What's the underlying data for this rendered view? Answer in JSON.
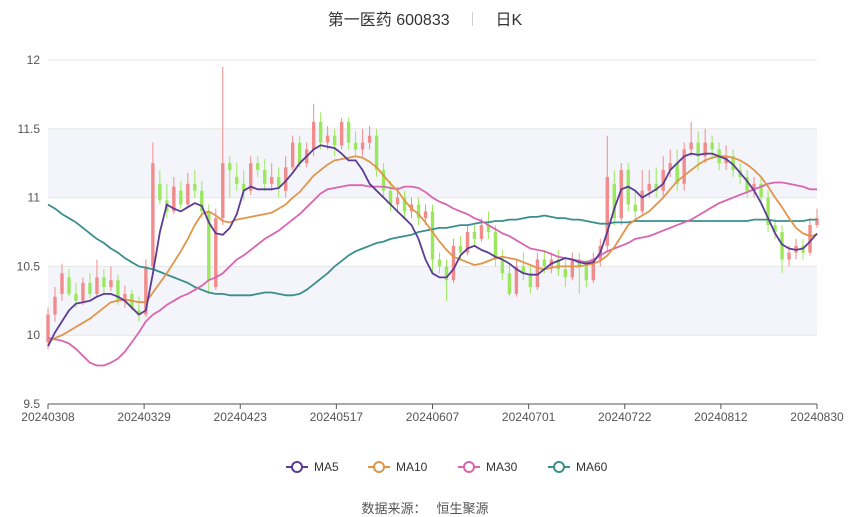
{
  "title": {
    "name": "第一医药",
    "code": "600833",
    "period": "日K"
  },
  "source": {
    "label": "数据来源：",
    "value": "恒生聚源"
  },
  "chart_data": {
    "type": "candlestick",
    "ylim": [
      9.5,
      12
    ],
    "yticks": [
      "9.5",
      "10",
      "10.5",
      "11",
      "11.5",
      "12"
    ],
    "xticks": [
      "20240308",
      "20240329",
      "20240423",
      "20240517",
      "20240607",
      "20240701",
      "20240722",
      "20240812",
      "20240830"
    ],
    "colors": {
      "up": "#f28b8c",
      "down": "#9be85f",
      "MA5": "#5b3c95",
      "MA10": "#e0954a",
      "MA30": "#d965b0",
      "MA60": "#3a8e8e",
      "band": "#f3f5fa",
      "grid": "#e6e6e6"
    },
    "legend": [
      {
        "name": "MA5",
        "color": "#5b3c95"
      },
      {
        "name": "MA10",
        "color": "#e0954a"
      },
      {
        "name": "MA30",
        "color": "#d965b0"
      },
      {
        "name": "MA60",
        "color": "#3a8e8e"
      }
    ],
    "candles": [
      [
        9.95,
        10.15,
        9.9,
        10.2
      ],
      [
        10.15,
        10.28,
        10.1,
        10.35
      ],
      [
        10.3,
        10.45,
        10.25,
        10.52
      ],
      [
        10.42,
        10.3,
        10.28,
        10.48
      ],
      [
        10.3,
        10.25,
        10.2,
        10.38
      ],
      [
        10.25,
        10.38,
        10.22,
        10.42
      ],
      [
        10.38,
        10.3,
        10.27,
        10.45
      ],
      [
        10.3,
        10.42,
        10.28,
        10.55
      ],
      [
        10.42,
        10.35,
        10.3,
        10.48
      ],
      [
        10.35,
        10.4,
        10.32,
        10.5
      ],
      [
        10.4,
        10.25,
        10.22,
        10.44
      ],
      [
        10.25,
        10.3,
        10.2,
        10.36
      ],
      [
        10.3,
        10.2,
        10.18,
        10.33
      ],
      [
        10.18,
        10.15,
        10.1,
        10.28
      ],
      [
        10.15,
        10.5,
        10.13,
        10.55
      ],
      [
        10.5,
        11.25,
        10.48,
        11.4
      ],
      [
        11.1,
        10.98,
        10.95,
        11.2
      ],
      [
        10.98,
        10.9,
        10.85,
        11.1
      ],
      [
        10.9,
        11.08,
        10.88,
        11.15
      ],
      [
        11.05,
        10.95,
        10.92,
        11.12
      ],
      [
        10.95,
        11.1,
        10.93,
        11.18
      ],
      [
        11.1,
        11.05,
        11.0,
        11.2
      ],
      [
        11.05,
        10.9,
        10.85,
        11.12
      ],
      [
        10.9,
        10.4,
        10.3,
        10.95
      ],
      [
        10.35,
        10.85,
        10.33,
        10.92
      ],
      [
        10.85,
        11.25,
        10.8,
        11.95
      ],
      [
        11.25,
        11.2,
        11.0,
        11.3
      ],
      [
        11.15,
        11.1,
        11.05,
        11.25
      ],
      [
        11.1,
        11.05,
        10.98,
        11.2
      ],
      [
        11.05,
        11.25,
        11.02,
        11.3
      ],
      [
        11.25,
        11.2,
        11.15,
        11.3
      ],
      [
        11.2,
        11.1,
        11.05,
        11.28
      ],
      [
        11.1,
        11.15,
        11.05,
        11.25
      ],
      [
        11.15,
        11.08,
        11.0,
        11.22
      ],
      [
        11.05,
        11.22,
        11.0,
        11.3
      ],
      [
        11.22,
        11.4,
        11.2,
        11.45
      ],
      [
        11.4,
        11.25,
        11.22,
        11.45
      ],
      [
        11.25,
        11.35,
        11.22,
        11.4
      ],
      [
        11.35,
        11.55,
        11.3,
        11.68
      ],
      [
        11.55,
        11.4,
        11.35,
        11.62
      ],
      [
        11.4,
        11.45,
        11.35,
        11.52
      ],
      [
        11.45,
        11.38,
        11.3,
        11.5
      ],
      [
        11.38,
        11.55,
        11.35,
        11.58
      ],
      [
        11.55,
        11.4,
        11.35,
        11.58
      ],
      [
        11.4,
        11.35,
        11.3,
        11.48
      ],
      [
        11.35,
        11.4,
        11.3,
        11.5
      ],
      [
        11.4,
        11.45,
        11.35,
        11.52
      ],
      [
        11.45,
        11.2,
        11.15,
        11.5
      ],
      [
        11.2,
        11.05,
        11.0,
        11.25
      ],
      [
        11.05,
        10.95,
        10.9,
        11.12
      ],
      [
        10.95,
        11.0,
        10.9,
        11.08
      ],
      [
        11.0,
        10.9,
        10.85,
        11.05
      ],
      [
        10.9,
        10.95,
        10.85,
        11.0
      ],
      [
        10.95,
        10.85,
        10.8,
        11.0
      ],
      [
        10.85,
        10.9,
        10.8,
        10.95
      ],
      [
        10.9,
        10.55,
        10.45,
        10.95
      ],
      [
        10.55,
        10.5,
        10.45,
        10.6
      ],
      [
        10.5,
        10.4,
        10.25,
        10.55
      ],
      [
        10.4,
        10.65,
        10.38,
        10.7
      ],
      [
        10.65,
        10.6,
        10.55,
        10.72
      ],
      [
        10.6,
        10.75,
        10.58,
        10.8
      ],
      [
        10.75,
        10.7,
        10.65,
        10.8
      ],
      [
        10.7,
        10.8,
        10.68,
        10.85
      ],
      [
        10.8,
        10.75,
        10.7,
        10.9
      ],
      [
        10.75,
        10.55,
        10.5,
        10.8
      ],
      [
        10.55,
        10.45,
        10.4,
        10.62
      ],
      [
        10.45,
        10.3,
        10.28,
        10.52
      ],
      [
        10.3,
        10.5,
        10.28,
        10.55
      ],
      [
        10.5,
        10.45,
        10.4,
        10.6
      ],
      [
        10.45,
        10.35,
        10.3,
        10.5
      ],
      [
        10.35,
        10.55,
        10.33,
        10.6
      ],
      [
        10.55,
        10.5,
        10.45,
        10.62
      ],
      [
        10.5,
        10.55,
        10.45,
        10.6
      ],
      [
        10.55,
        10.48,
        10.43,
        10.62
      ],
      [
        10.48,
        10.42,
        10.35,
        10.55
      ],
      [
        10.42,
        10.55,
        10.4,
        10.6
      ],
      [
        10.55,
        10.5,
        10.3,
        10.6
      ],
      [
        10.5,
        10.4,
        10.35,
        10.55
      ],
      [
        10.4,
        10.55,
        10.38,
        10.6
      ],
      [
        10.55,
        10.65,
        10.5,
        10.7
      ],
      [
        10.65,
        11.15,
        10.6,
        11.45
      ],
      [
        11.1,
        10.85,
        10.8,
        11.2
      ],
      [
        10.85,
        11.2,
        10.8,
        11.25
      ],
      [
        11.2,
        10.95,
        10.9,
        11.25
      ],
      [
        10.95,
        10.9,
        10.85,
        11.05
      ],
      [
        10.9,
        11.05,
        10.88,
        11.2
      ],
      [
        11.05,
        11.1,
        11.0,
        11.2
      ],
      [
        11.1,
        11.05,
        11.0,
        11.22
      ],
      [
        11.05,
        11.2,
        11.0,
        11.3
      ],
      [
        11.2,
        11.25,
        11.15,
        11.35
      ],
      [
        11.25,
        11.1,
        11.05,
        11.35
      ],
      [
        11.1,
        11.35,
        11.05,
        11.4
      ],
      [
        11.35,
        11.4,
        11.3,
        11.55
      ],
      [
        11.4,
        11.3,
        11.2,
        11.48
      ],
      [
        11.3,
        11.4,
        11.25,
        11.5
      ],
      [
        11.4,
        11.35,
        11.28,
        11.45
      ],
      [
        11.35,
        11.25,
        11.2,
        11.4
      ],
      [
        11.25,
        11.3,
        11.2,
        11.38
      ],
      [
        11.3,
        11.2,
        11.15,
        11.35
      ],
      [
        11.2,
        11.15,
        11.1,
        11.25
      ],
      [
        11.15,
        11.05,
        11.0,
        11.2
      ],
      [
        11.05,
        11.1,
        11.0,
        11.15
      ],
      [
        11.1,
        11.0,
        10.95,
        11.15
      ],
      [
        11.0,
        10.8,
        10.75,
        11.05
      ],
      [
        10.8,
        10.75,
        10.7,
        10.85
      ],
      [
        10.75,
        10.55,
        10.45,
        10.8
      ],
      [
        10.55,
        10.6,
        10.5,
        10.65
      ],
      [
        10.6,
        10.65,
        10.55,
        10.7
      ],
      [
        10.65,
        10.6,
        10.55,
        10.7
      ],
      [
        10.6,
        10.8,
        10.58,
        10.85
      ],
      [
        10.8,
        10.85,
        10.78,
        10.92
      ]
    ],
    "ma5": [
      9.92,
      10.02,
      10.1,
      10.18,
      10.23,
      10.24,
      10.25,
      10.28,
      10.3,
      10.3,
      10.28,
      10.25,
      10.2,
      10.15,
      10.18,
      10.45,
      10.75,
      10.95,
      10.92,
      10.9,
      10.93,
      10.96,
      10.94,
      10.82,
      10.74,
      10.73,
      10.78,
      10.88,
      11.05,
      11.08,
      11.06,
      11.06,
      11.06,
      11.07,
      11.12,
      11.18,
      11.25,
      11.3,
      11.35,
      11.38,
      11.37,
      11.36,
      11.32,
      11.27,
      11.27,
      11.2,
      11.1,
      11.05,
      11.0,
      10.95,
      10.9,
      10.85,
      10.8,
      10.7,
      10.55,
      10.45,
      10.42,
      10.42,
      10.48,
      10.58,
      10.63,
      10.65,
      10.62,
      10.6,
      10.57,
      10.55,
      10.52,
      10.48,
      10.45,
      10.44,
      10.44,
      10.48,
      10.52,
      10.54,
      10.56,
      10.55,
      10.53,
      10.52,
      10.53,
      10.6,
      10.75,
      10.92,
      11.06,
      11.08,
      11.05,
      11.0,
      11.03,
      11.06,
      11.1,
      11.2,
      11.25,
      11.3,
      11.32,
      11.31,
      11.32,
      11.32,
      11.3,
      11.28,
      11.24,
      11.18,
      11.12,
      11.05,
      10.96,
      10.85,
      10.74,
      10.66,
      10.63,
      10.62,
      10.63,
      10.68,
      10.74
    ],
    "ma10": [
      9.95,
      9.98,
      10.0,
      10.03,
      10.06,
      10.09,
      10.12,
      10.16,
      10.2,
      10.24,
      10.25,
      10.26,
      10.25,
      10.24,
      10.24,
      10.31,
      10.38,
      10.45,
      10.53,
      10.61,
      10.7,
      10.8,
      10.88,
      10.9,
      10.87,
      10.83,
      10.82,
      10.84,
      10.85,
      10.86,
      10.87,
      10.88,
      10.89,
      10.92,
      10.95,
      11.0,
      11.04,
      11.1,
      11.16,
      11.2,
      11.24,
      11.27,
      11.28,
      11.29,
      11.3,
      11.29,
      11.26,
      11.22,
      11.16,
      11.1,
      11.05,
      10.98,
      10.92,
      10.88,
      10.82,
      10.75,
      10.68,
      10.62,
      10.57,
      10.55,
      10.53,
      10.51,
      10.52,
      10.54,
      10.56,
      10.57,
      10.56,
      10.55,
      10.53,
      10.51,
      10.49,
      10.48,
      10.49,
      10.5,
      10.5,
      10.5,
      10.5,
      10.51,
      10.52,
      10.54,
      10.58,
      10.64,
      10.72,
      10.8,
      10.84,
      10.87,
      10.9,
      10.95,
      11.0,
      11.06,
      11.12,
      11.16,
      11.2,
      11.24,
      11.27,
      11.29,
      11.3,
      11.3,
      11.29,
      11.27,
      11.24,
      11.2,
      11.15,
      11.08,
      11.0,
      10.93,
      10.85,
      10.78,
      10.74,
      10.72,
      10.73
    ],
    "ma30": [
      9.98,
      9.97,
      9.96,
      9.94,
      9.9,
      9.85,
      9.8,
      9.78,
      9.78,
      9.8,
      9.83,
      9.88,
      9.95,
      10.02,
      10.1,
      10.15,
      10.18,
      10.22,
      10.25,
      10.28,
      10.3,
      10.33,
      10.36,
      10.4,
      10.42,
      10.45,
      10.5,
      10.55,
      10.58,
      10.62,
      10.66,
      10.7,
      10.73,
      10.76,
      10.8,
      10.84,
      10.88,
      10.93,
      10.98,
      11.03,
      11.06,
      11.07,
      11.08,
      11.09,
      11.09,
      11.09,
      11.08,
      11.08,
      11.08,
      11.07,
      11.06,
      11.08,
      11.08,
      11.07,
      11.04,
      11.0,
      10.97,
      10.95,
      10.92,
      10.9,
      10.88,
      10.85,
      10.83,
      10.8,
      10.77,
      10.74,
      10.72,
      10.69,
      10.66,
      10.63,
      10.62,
      10.61,
      10.59,
      10.57,
      10.56,
      10.55,
      10.54,
      10.53,
      10.55,
      10.58,
      10.61,
      10.63,
      10.65,
      10.67,
      10.7,
      10.71,
      10.72,
      10.74,
      10.76,
      10.78,
      10.8,
      10.82,
      10.84,
      10.87,
      10.9,
      10.93,
      10.96,
      10.98,
      11.0,
      11.02,
      11.04,
      11.06,
      11.08,
      11.1,
      11.11,
      11.11,
      11.1,
      11.09,
      11.08,
      11.06,
      11.06
    ],
    "ma60": [
      10.95,
      10.92,
      10.88,
      10.85,
      10.82,
      10.78,
      10.74,
      10.7,
      10.67,
      10.63,
      10.6,
      10.56,
      10.53,
      10.5,
      10.49,
      10.48,
      10.46,
      10.44,
      10.42,
      10.4,
      10.38,
      10.35,
      10.33,
      10.31,
      10.3,
      10.3,
      10.29,
      10.29,
      10.29,
      10.29,
      10.3,
      10.31,
      10.31,
      10.3,
      10.29,
      10.29,
      10.3,
      10.33,
      10.37,
      10.41,
      10.45,
      10.5,
      10.54,
      10.58,
      10.61,
      10.63,
      10.65,
      10.67,
      10.68,
      10.7,
      10.71,
      10.72,
      10.73,
      10.75,
      10.76,
      10.77,
      10.78,
      10.78,
      10.79,
      10.8,
      10.8,
      10.81,
      10.82,
      10.82,
      10.83,
      10.83,
      10.84,
      10.84,
      10.85,
      10.86,
      10.86,
      10.87,
      10.86,
      10.85,
      10.85,
      10.84,
      10.84,
      10.83,
      10.82,
      10.81,
      10.81,
      10.82,
      10.82,
      10.82,
      10.83,
      10.83,
      10.83,
      10.83,
      10.83,
      10.83,
      10.83,
      10.83,
      10.83,
      10.83,
      10.83,
      10.83,
      10.83,
      10.83,
      10.83,
      10.83,
      10.83,
      10.84,
      10.84,
      10.84,
      10.83,
      10.83,
      10.83,
      10.83,
      10.83,
      10.84,
      10.84
    ]
  }
}
